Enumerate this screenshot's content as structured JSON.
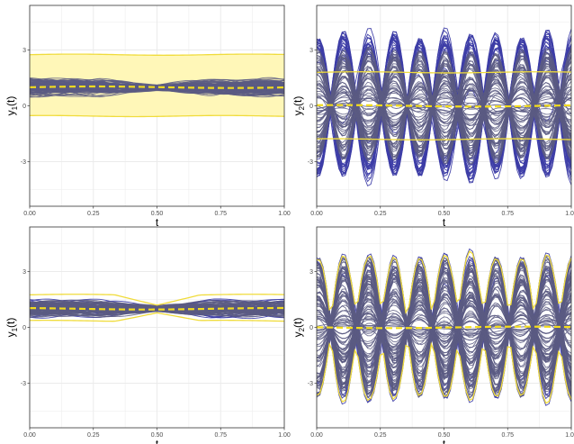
{
  "colors": {
    "curve_grey": "#5b5b82",
    "curve_blue": "#3d3da6",
    "band_fill": "#fff7b8",
    "band_line": "#f0dc3c",
    "mean_line": "#f2dc1e",
    "grid": "#ebebeb",
    "frame": "#333333"
  },
  "chart_data": [
    {
      "type": "line",
      "id": "top-left",
      "title": "",
      "xlabel": "t",
      "ylabel_main": "y",
      "ylabel_sub": "1",
      "ylabel_arg": "(t)",
      "xlim": [
        0,
        1
      ],
      "ylim": [
        -5.4,
        5.4
      ],
      "xticks": [
        0,
        0.25,
        0.5,
        0.75,
        1
      ],
      "xtick_labels": [
        "0.00",
        "0.25",
        "0.50",
        "0.75",
        "1.00"
      ],
      "yticks": [
        -3,
        0,
        3
      ],
      "ytick_labels": [
        "-3",
        "0",
        "3"
      ],
      "grid": true,
      "curves": {
        "model": "constant",
        "mean": 1.0,
        "spread": 0.55,
        "count": 110,
        "outlier_count": 0
      },
      "band": {
        "upper": 2.75,
        "lower": -0.55
      },
      "mean_line": 1.0
    },
    {
      "type": "line",
      "id": "top-right",
      "title": "",
      "xlabel": "t",
      "ylabel_main": "y",
      "ylabel_sub": "2",
      "ylabel_arg": "(t)",
      "xlim": [
        0,
        1
      ],
      "ylim": [
        -5.4,
        5.4
      ],
      "xticks": [
        0,
        0.25,
        0.5,
        0.75,
        1
      ],
      "xtick_labels": [
        "0.00",
        "0.25",
        "0.50",
        "0.75",
        "1.00"
      ],
      "yticks": [
        -3,
        0,
        3
      ],
      "ytick_labels": [
        "-3",
        "0",
        "3"
      ],
      "grid": true,
      "curves": {
        "model": "sine",
        "mean": 0.0,
        "periods": 5,
        "amp_max": 3.8,
        "count": 120,
        "outlier_count": 40
      },
      "band": {
        "upper": 1.8,
        "lower": -1.8
      },
      "mean_line": 0.0
    },
    {
      "type": "line",
      "id": "bottom-left",
      "title": "",
      "xlabel": "t",
      "ylabel_main": "y",
      "ylabel_sub": "1",
      "ylabel_arg": "(t)",
      "xlim": [
        0,
        1
      ],
      "ylim": [
        -5.4,
        5.4
      ],
      "xticks": [
        0,
        0.25,
        0.5,
        0.75,
        1
      ],
      "xtick_labels": [
        "0.00",
        "0.25",
        "0.50",
        "0.75",
        "1.00"
      ],
      "yticks": [
        -3,
        0,
        3
      ],
      "ytick_labels": [
        "-3",
        "0",
        "3"
      ],
      "grid": true,
      "curves": {
        "model": "constant",
        "mean": 1.0,
        "spread": 0.55,
        "count": 110,
        "outlier_count": 12
      },
      "band": {
        "upper": 1.75,
        "lower": 0.35
      },
      "mean_line": 1.0
    },
    {
      "type": "line",
      "id": "bottom-right",
      "title": "",
      "xlabel": "t",
      "ylabel_main": "y",
      "ylabel_sub": "2",
      "ylabel_arg": "(t)",
      "xlim": [
        0,
        1
      ],
      "ylim": [
        -5.4,
        5.4
      ],
      "xticks": [
        0,
        0.25,
        0.5,
        0.75,
        1
      ],
      "xtick_labels": [
        "0.00",
        "0.25",
        "0.50",
        "0.75",
        "1.00"
      ],
      "yticks": [
        -3,
        0,
        3
      ],
      "ytick_labels": [
        "-3",
        "0",
        "3"
      ],
      "grid": true,
      "curves": {
        "model": "sine",
        "mean": 0.0,
        "periods": 5,
        "amp_max": 3.8,
        "count": 120,
        "outlier_count": 10
      },
      "band": {
        "upper": "envelope",
        "lower": "envelope"
      },
      "mean_line": 0.0
    }
  ]
}
